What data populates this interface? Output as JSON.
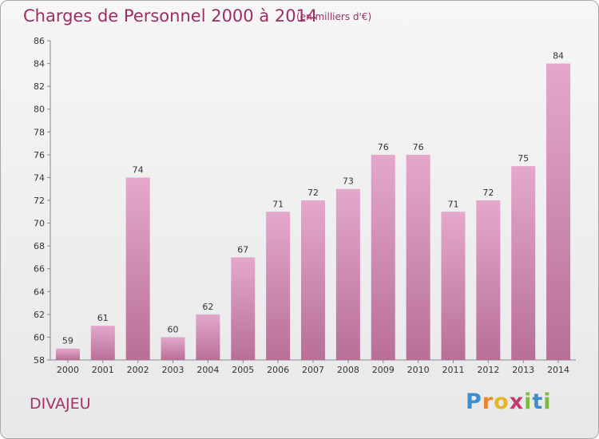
{
  "header": {
    "title": "Charges de Personnel 2000 à 2014",
    "subtitle": "(en milliers d'€)"
  },
  "footer": {
    "commune": "DIVAJEU",
    "logo_letters": [
      "P",
      "r",
      "o",
      "x",
      "i",
      "t",
      "i"
    ],
    "logo_colors": [
      "#3a8fd1",
      "#e8862a",
      "#e8b42a",
      "#c43b6e",
      "#7db93a",
      "#3a8fd1",
      "#7db93a"
    ]
  },
  "colors": {
    "bar_top": "#e4a8cc",
    "bar_bottom": "#b86f97",
    "title": "#9a2f63"
  },
  "chart_data": {
    "type": "bar",
    "categories": [
      "2000",
      "2001",
      "2002",
      "2003",
      "2004",
      "2005",
      "2006",
      "2007",
      "2008",
      "2009",
      "2010",
      "2011",
      "2012",
      "2013",
      "2014"
    ],
    "values": [
      59,
      61,
      74,
      60,
      62,
      67,
      71,
      72,
      73,
      76,
      76,
      71,
      72,
      75,
      84
    ],
    "ylim": [
      58,
      86
    ],
    "yticks": [
      58,
      60,
      62,
      64,
      66,
      68,
      70,
      72,
      74,
      76,
      78,
      80,
      82,
      84,
      86
    ],
    "grid": false
  }
}
